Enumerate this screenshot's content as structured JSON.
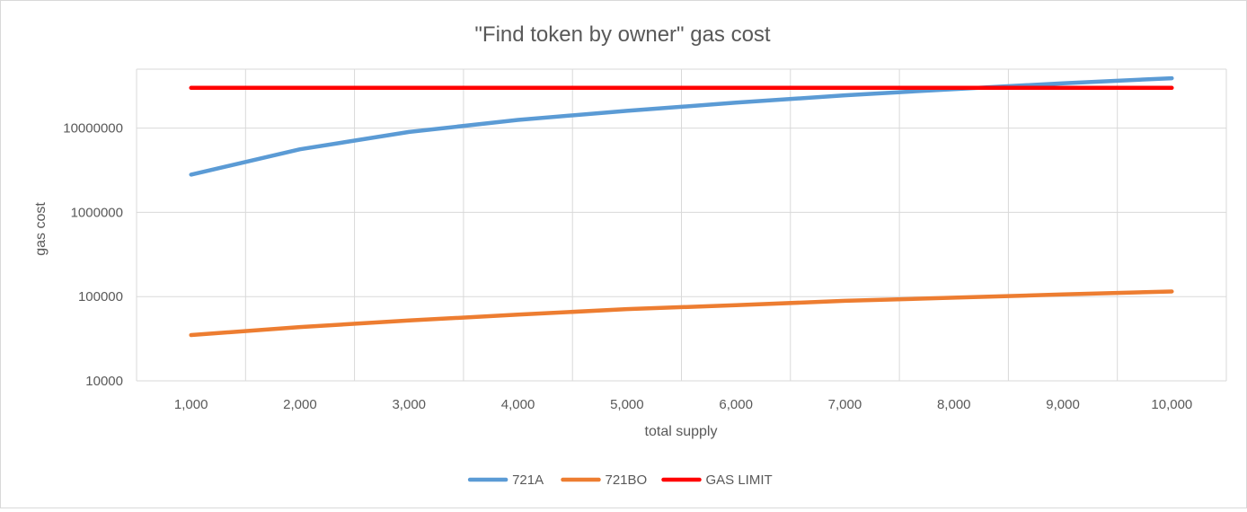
{
  "chart_data": {
    "type": "line",
    "title": "\"Find token by owner\" gas cost",
    "xlabel": "total supply",
    "ylabel": "gas cost",
    "x": [
      1000,
      2000,
      3000,
      4000,
      5000,
      6000,
      7000,
      8000,
      9000,
      10000
    ],
    "x_tick_labels": [
      "1,000",
      "2,000",
      "3,000",
      "4,000",
      "5,000",
      "6,000",
      "7,000",
      "8,000",
      "9,000",
      "10,000"
    ],
    "y_scale": "log",
    "ylim": [
      10000,
      50000000
    ],
    "y_ticks": [
      10000,
      100000,
      1000000,
      10000000
    ],
    "y_tick_labels": [
      "10000",
      "100000",
      "1000000",
      "10000000"
    ],
    "grid": true,
    "legend_position": "bottom",
    "series": [
      {
        "name": "721A",
        "color": "#5b9bd5",
        "values": [
          2800000,
          5600000,
          9000000,
          12500000,
          16000000,
          20000000,
          24500000,
          29000000,
          34000000,
          39000000
        ]
      },
      {
        "name": "721BO",
        "color": "#ed7d31",
        "values": [
          35000,
          43500,
          52000,
          61000,
          71000,
          79000,
          89000,
          97000,
          106000,
          115000
        ]
      },
      {
        "name": "GAS LIMIT",
        "color": "#ff0000",
        "values": [
          30000000,
          30000000,
          30000000,
          30000000,
          30000000,
          30000000,
          30000000,
          30000000,
          30000000,
          30000000
        ]
      }
    ]
  }
}
